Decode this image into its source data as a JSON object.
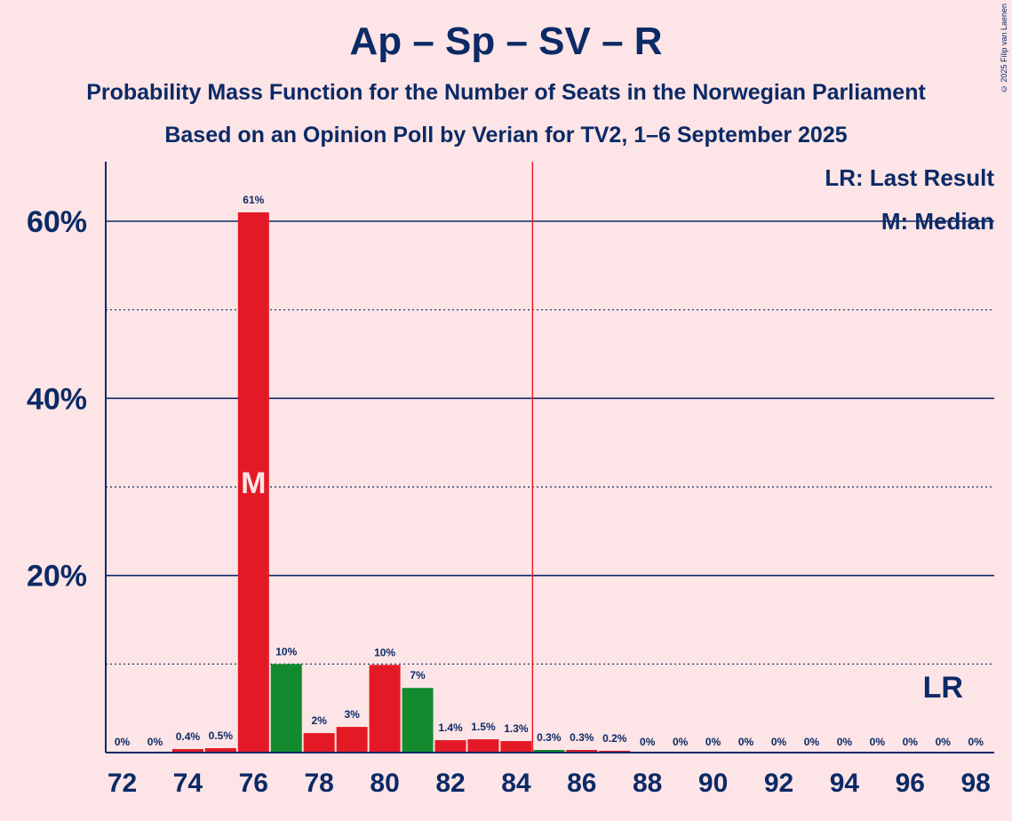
{
  "chart_data": {
    "type": "bar",
    "title": "Ap – Sp – SV – R",
    "subtitle": "Probability Mass Function for the Number of Seats in the Norwegian Parliament",
    "subtitle2": "Based on an Opinion Poll by Verian for TV2, 1–6 September 2025",
    "copyright": "© 2025 Filip van Laenen",
    "x": [
      72,
      73,
      74,
      75,
      76,
      77,
      78,
      79,
      80,
      81,
      82,
      83,
      84,
      85,
      86,
      87,
      88,
      89,
      90,
      91,
      92,
      93,
      94,
      95,
      96,
      97,
      98
    ],
    "values": [
      0,
      0,
      0.4,
      0.5,
      61,
      10,
      2.2,
      2.9,
      9.9,
      7.3,
      1.4,
      1.5,
      1.3,
      0.3,
      0.3,
      0.2,
      0,
      0,
      0,
      0,
      0,
      0,
      0,
      0,
      0,
      0,
      0
    ],
    "labels": [
      "0%",
      "0%",
      "0.4%",
      "0.5%",
      "61%",
      "10%",
      "2%",
      "3%",
      "10%",
      "7%",
      "1.4%",
      "1.5%",
      "1.3%",
      "0.3%",
      "0.3%",
      "0.2%",
      "0%",
      "0%",
      "0%",
      "0%",
      "0%",
      "0%",
      "0%",
      "0%",
      "0%",
      "0%",
      "0%"
    ],
    "bar_colors": [
      "#e31a25",
      "#e31a25",
      "#e31a25",
      "#e31a25",
      "#e31a25",
      "#138a2e",
      "#e31a25",
      "#e31a25",
      "#e31a25",
      "#138a2e",
      "#e31a25",
      "#e31a25",
      "#e31a25",
      "#138a2e",
      "#e31a25",
      "#e31a25",
      "#e31a25",
      "#e31a25",
      "#e31a25",
      "#e31a25",
      "#e31a25",
      "#e31a25",
      "#e31a25",
      "#e31a25",
      "#e31a25",
      "#e31a25",
      "#e31a25"
    ],
    "ylim": [
      0,
      67
    ],
    "y_ticks": [
      20,
      40,
      60
    ],
    "y_tick_labels": [
      "20%",
      "40%",
      "60%"
    ],
    "y_minor_ticks": [
      10,
      30,
      50
    ],
    "x_ticks": [
      72,
      74,
      76,
      78,
      80,
      82,
      84,
      86,
      88,
      90,
      92,
      94,
      96,
      98
    ],
    "majority_line": 84.5,
    "median": 76,
    "median_label": "M",
    "last_result": 97,
    "last_result_label": "LR",
    "legend": [
      "LR: Last Result",
      "M: Median"
    ],
    "colors": {
      "text": "#0b2a66",
      "red": "#e31a25",
      "green": "#138a2e",
      "background": "#fde4e6"
    }
  }
}
